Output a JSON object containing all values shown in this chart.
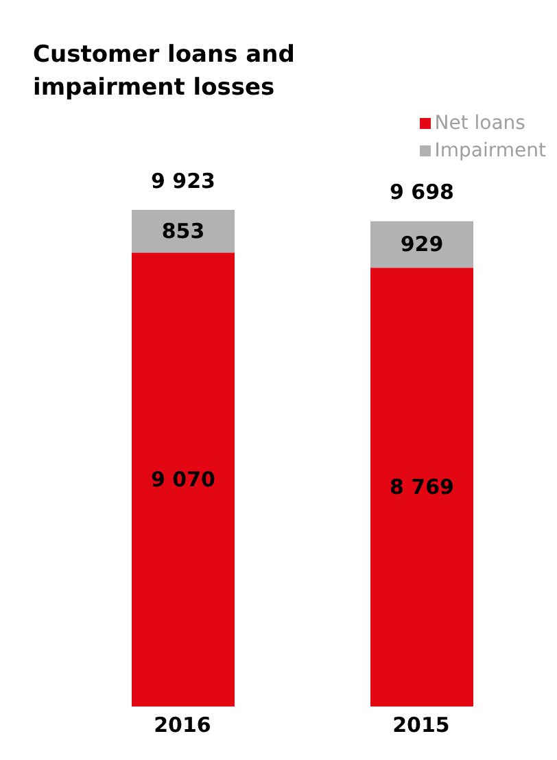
{
  "chart_data": {
    "type": "bar",
    "title": "Customer loans and impairment losses",
    "categories": [
      "2016",
      "2015"
    ],
    "stacked": true,
    "legend": "top right",
    "series": [
      {
        "name": "Net loans",
        "color": "#e30613",
        "values": [
          9070,
          8769
        ],
        "value_labels": [
          "9 070",
          "8 769"
        ]
      },
      {
        "name": "Impairment",
        "color": "#b2b2b2",
        "values": [
          853,
          929
        ],
        "value_labels": [
          "853",
          "929"
        ]
      }
    ],
    "totals": [
      "9 923",
      "9 698"
    ]
  }
}
